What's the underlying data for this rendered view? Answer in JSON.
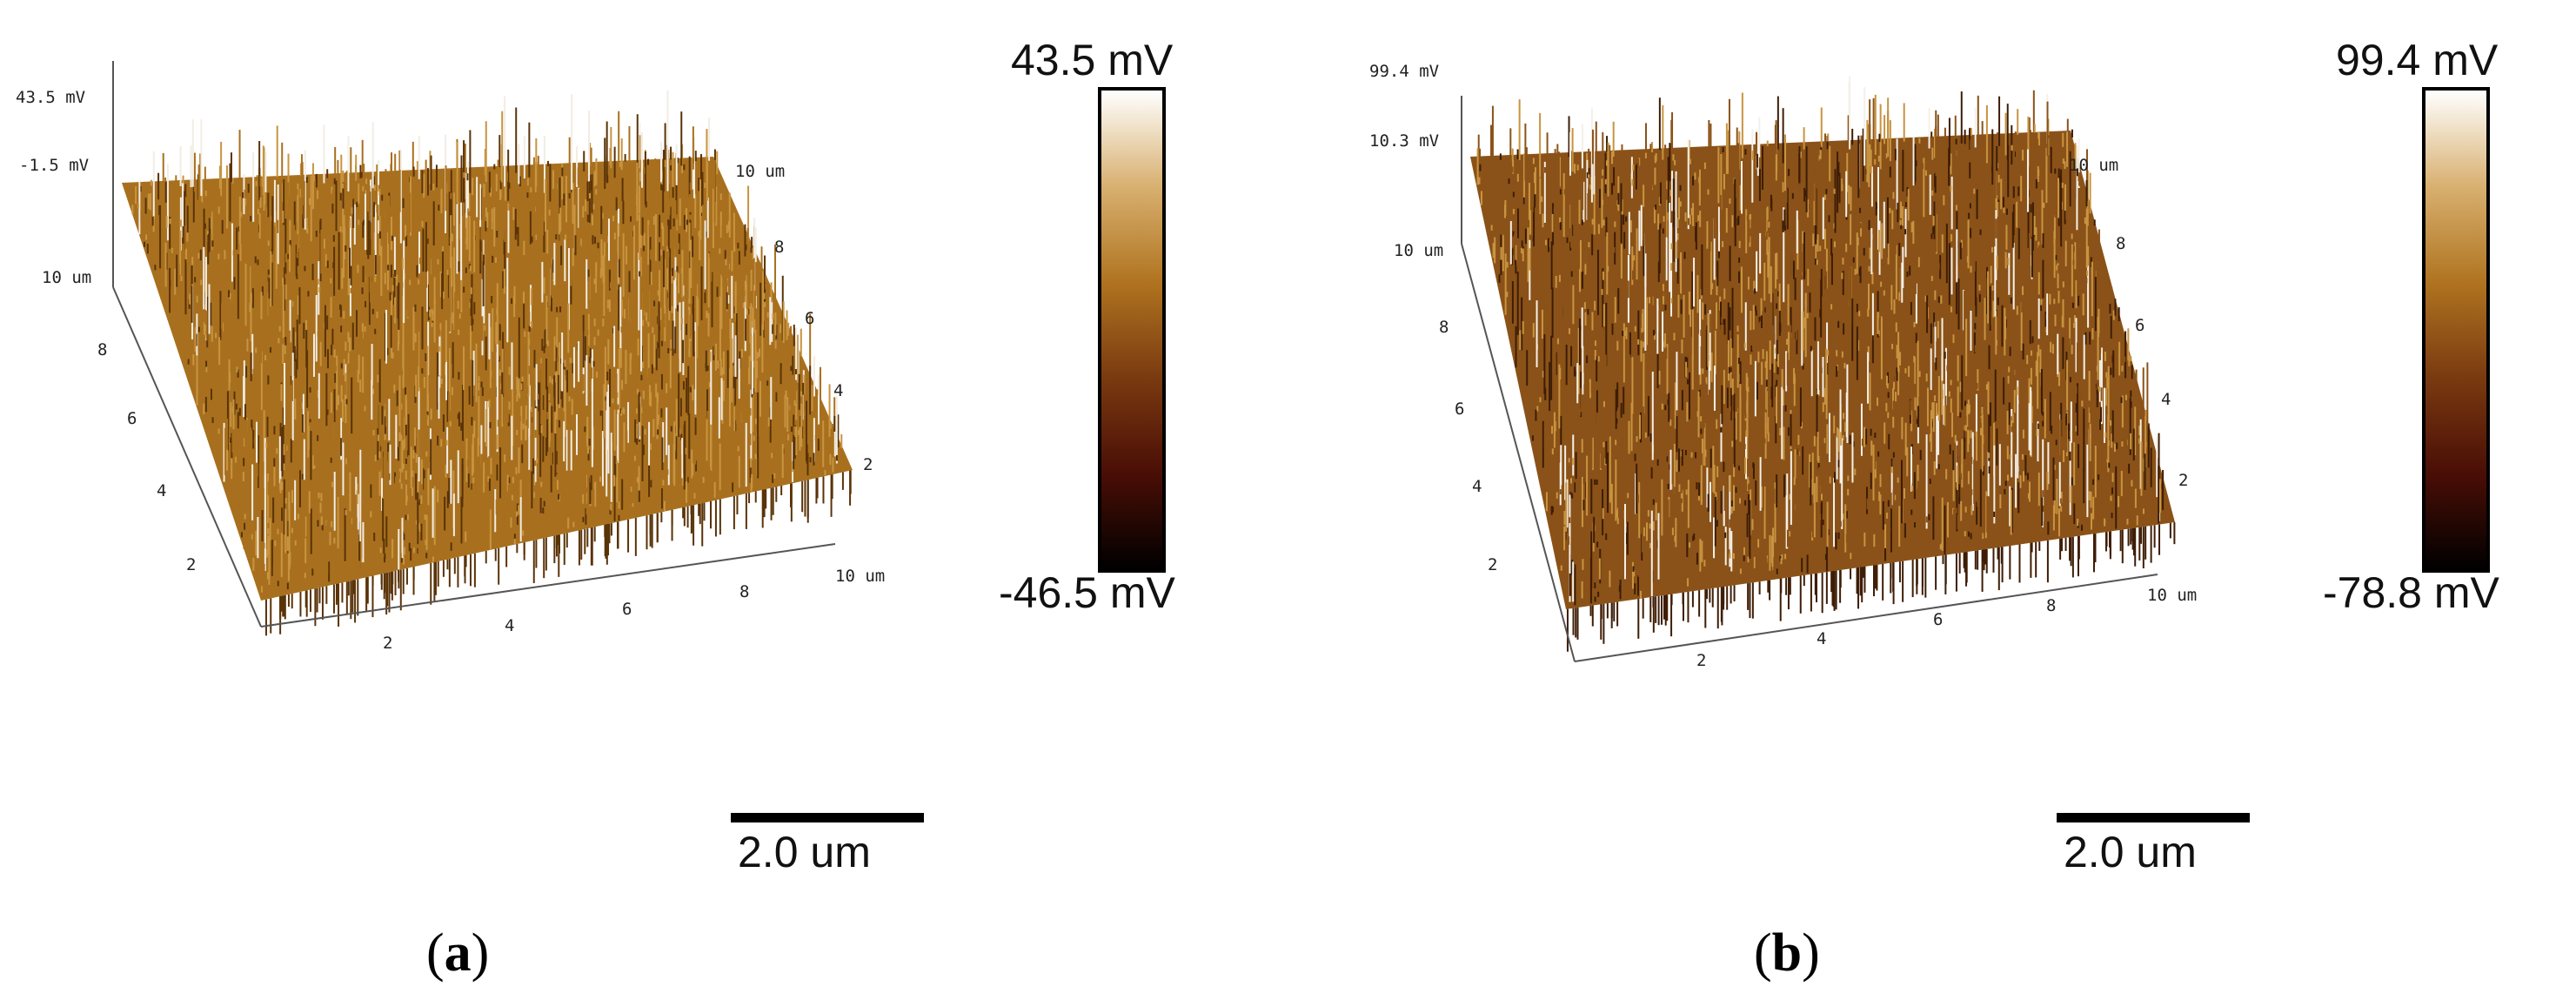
{
  "figure": {
    "panels": [
      {
        "id": "a",
        "caption_open": "(",
        "caption_letter": "a",
        "caption_close": ")",
        "z_axis": {
          "max_label": "43.5 mV",
          "mid_label": "-1.5 mV"
        },
        "left_axis": {
          "corner_label": "10 um",
          "ticks": [
            "8",
            "6",
            "4",
            "2"
          ]
        },
        "bottom_axis": {
          "ticks": [
            "2",
            "4",
            "6",
            "8"
          ],
          "end_label": "10 um"
        },
        "right_axis": {
          "top_label": "10 um",
          "ticks": [
            "8",
            "6",
            "4",
            "2"
          ]
        },
        "colorbar": {
          "max_label": "43.5 mV",
          "min_label": "-46.5 mV"
        },
        "scale_bar_label": "2.0 um",
        "colors": {
          "surface_base": "#a8701e",
          "surface_peak": "#f2ede4",
          "surface_dark": "#5a3308"
        }
      },
      {
        "id": "b",
        "caption_open": "(",
        "caption_letter": "b",
        "caption_close": ")",
        "z_axis": {
          "max_label": "99.4 mV",
          "mid_label": "10.3 mV"
        },
        "left_axis": {
          "corner_label": "10 um",
          "ticks": [
            "8",
            "6",
            "4",
            "2"
          ]
        },
        "bottom_axis": {
          "ticks": [
            "2",
            "4",
            "6",
            "8"
          ],
          "end_label": "10 um"
        },
        "right_axis": {
          "top_label": "10 um",
          "ticks": [
            "8",
            "6",
            "4",
            "2"
          ]
        },
        "colorbar": {
          "max_label": "99.4 mV",
          "min_label": "-78.8 mV"
        },
        "scale_bar_label": "2.0 um",
        "colors": {
          "surface_base": "#8a5218",
          "surface_peak": "#f5f0e8",
          "surface_dark": "#3e1d06"
        }
      }
    ],
    "colorbar_gradient": [
      "#000000",
      "#4a0e06",
      "#7a3a10",
      "#b07420",
      "#d8b070",
      "#ffffff"
    ]
  }
}
